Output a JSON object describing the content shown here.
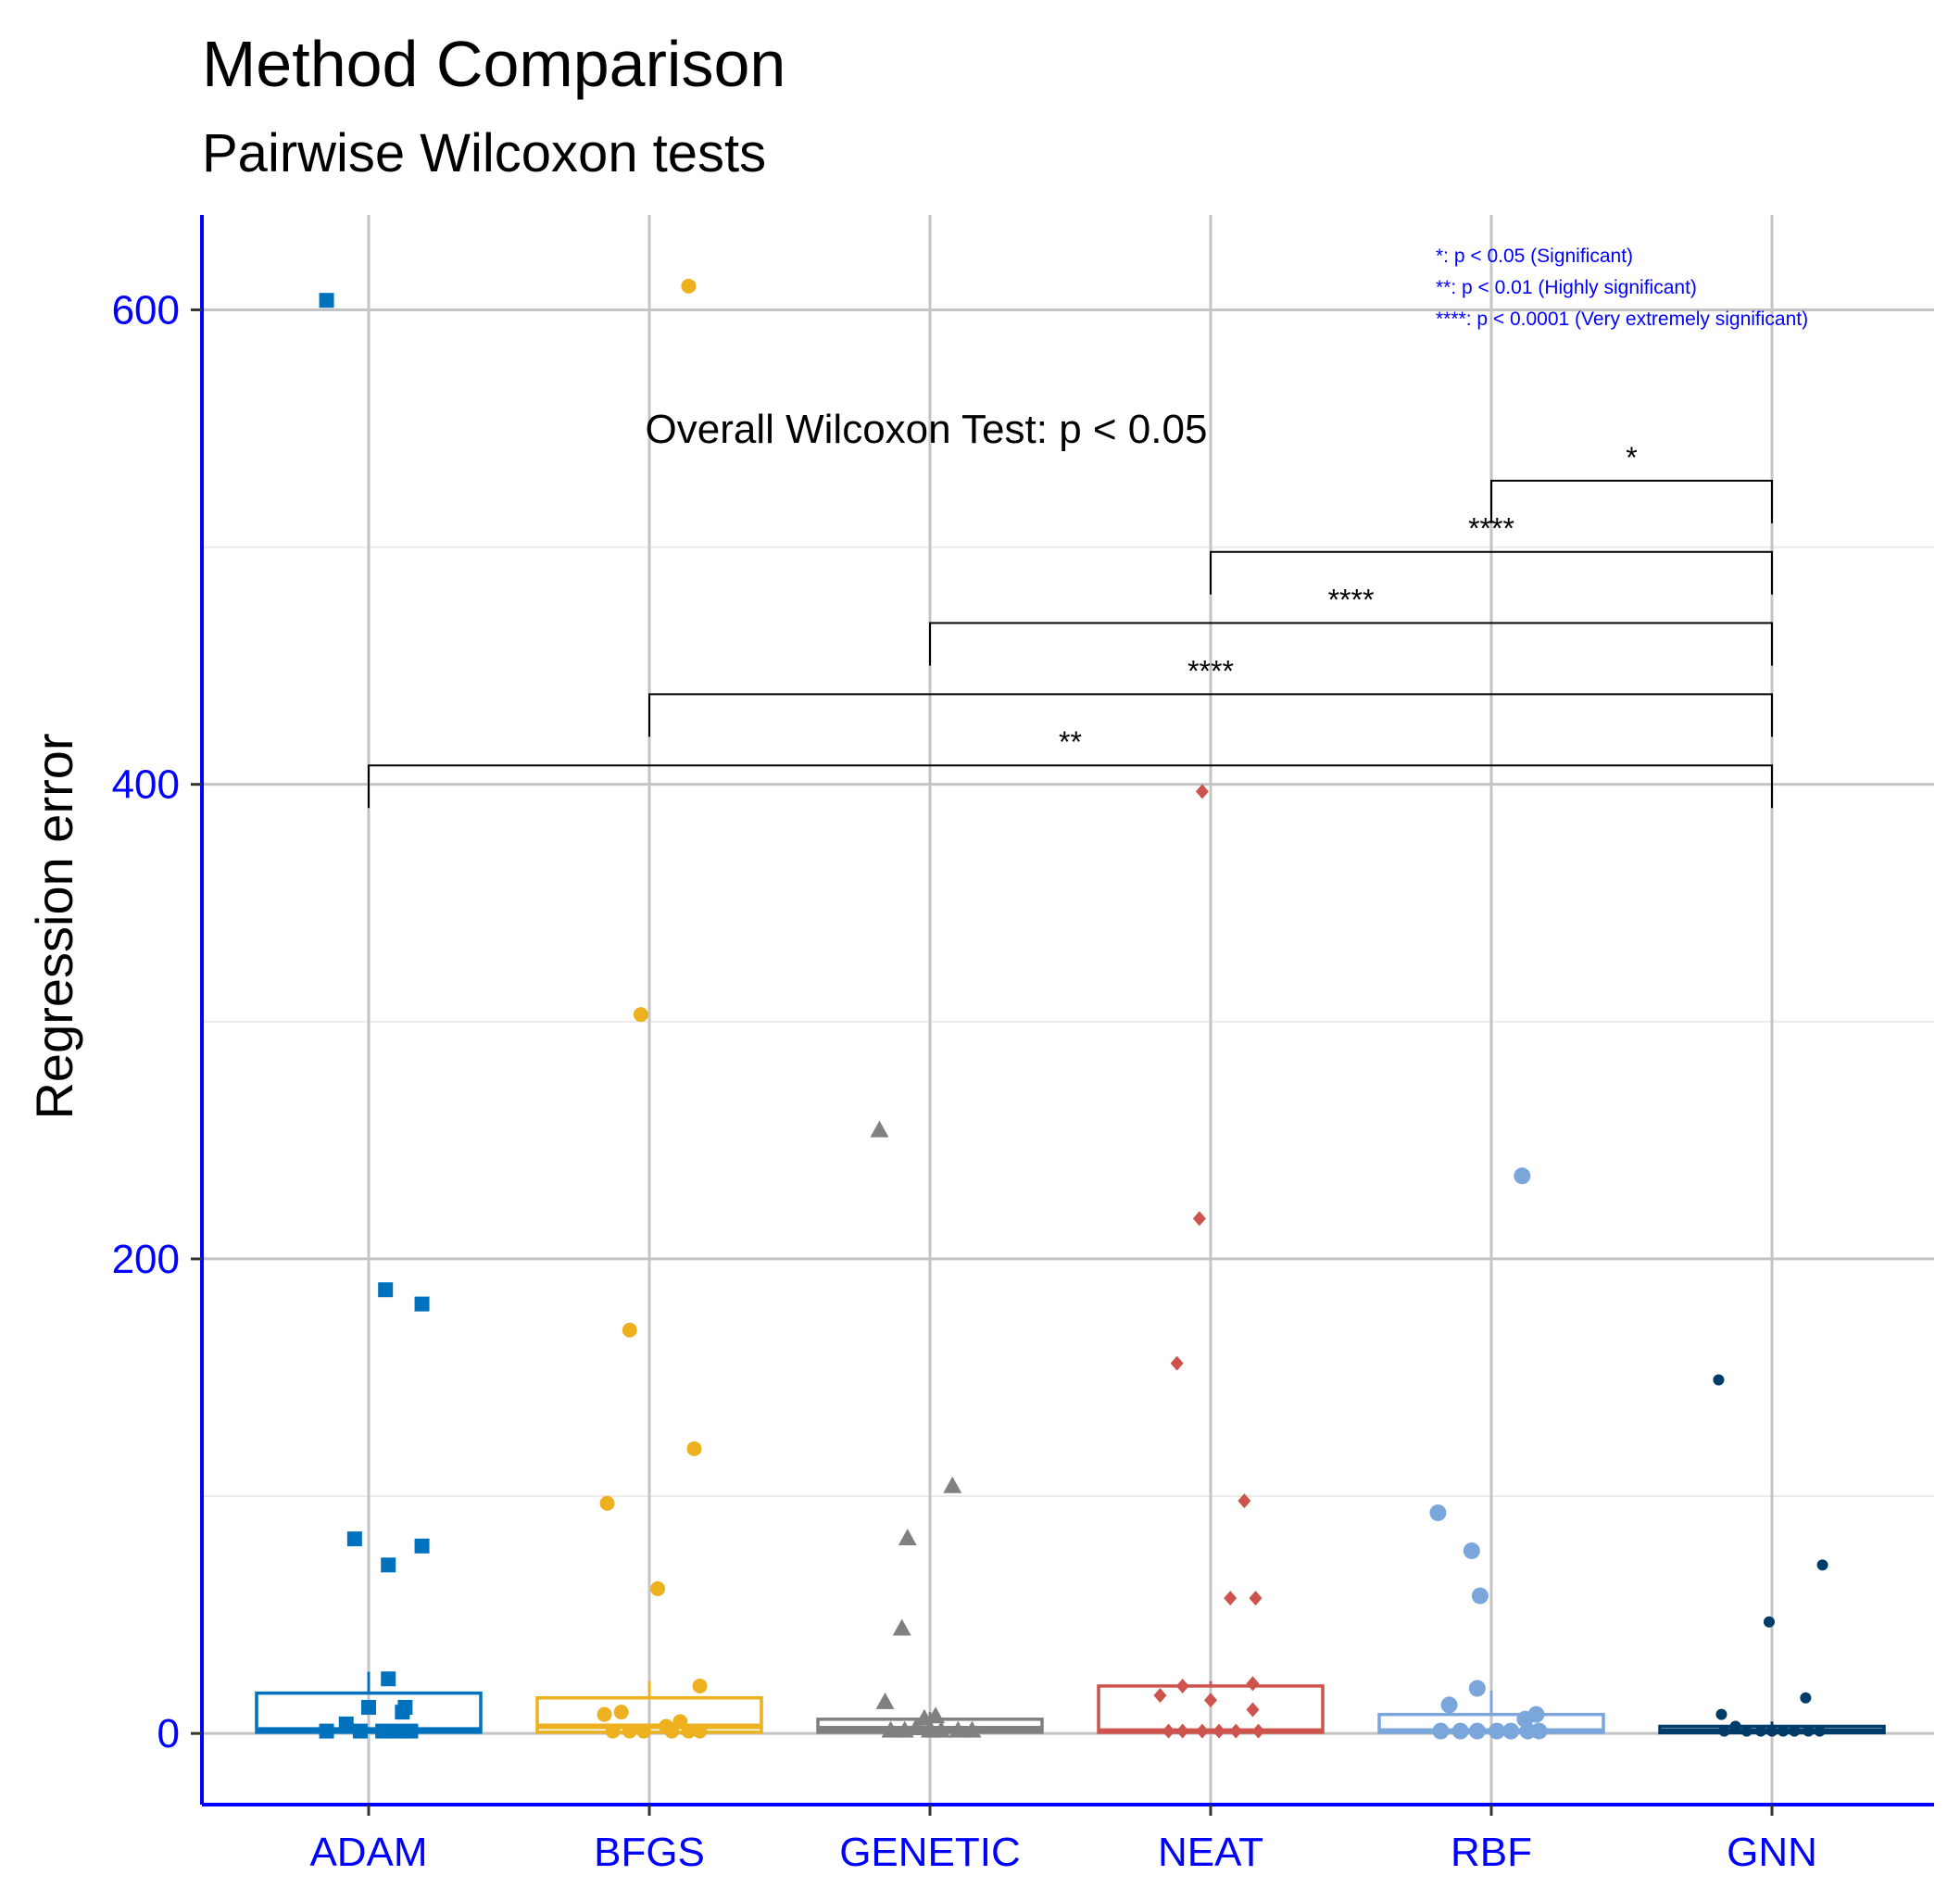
{
  "chart_data": {
    "type": "box",
    "title": "Method Comparison",
    "subtitle": "Pairwise Wilcoxon tests",
    "ylabel": "Regression error",
    "xlabel": "",
    "ylim": [
      -30,
      640
    ],
    "yticks": [
      0,
      200,
      400,
      600
    ],
    "categories": [
      "ADAM",
      "BFGS",
      "GENETIC",
      "NEAT",
      "RBF",
      "GNN"
    ],
    "colors": [
      "#0072BD",
      "#EDB120",
      "#808080",
      "#CD534C",
      "#7AA6DC",
      "#003C67"
    ],
    "markers": [
      "square",
      "circle",
      "triangle",
      "diamond",
      "circle",
      "circle"
    ],
    "boxes": [
      {
        "name": "ADAM",
        "q1": 0.5,
        "median": 1.5,
        "q3": 17,
        "upper_whisker": 26
      },
      {
        "name": "BFGS",
        "q1": 0.5,
        "median": 3,
        "q3": 15,
        "upper_whisker": 22
      },
      {
        "name": "GENETIC",
        "q1": 0.5,
        "median": 2,
        "q3": 6,
        "upper_whisker": 9
      },
      {
        "name": "NEAT",
        "q1": 0.5,
        "median": 1,
        "q3": 20,
        "upper_whisker": 22
      },
      {
        "name": "RBF",
        "q1": 0.5,
        "median": 1,
        "q3": 8,
        "upper_whisker": 18
      },
      {
        "name": "GNN",
        "q1": 0.3,
        "median": 1,
        "q3": 3,
        "upper_whisker": 5
      }
    ],
    "points": [
      {
        "name": "ADAM",
        "values": [
          {
            "dx": -0.15,
            "y": 604
          },
          {
            "dx": 0.06,
            "y": 187
          },
          {
            "dx": 0.19,
            "y": 181
          },
          {
            "dx": -0.05,
            "y": 82
          },
          {
            "dx": 0.19,
            "y": 79
          },
          {
            "dx": 0.07,
            "y": 71
          },
          {
            "dx": 0.07,
            "y": 23
          },
          {
            "dx": 0.0,
            "y": 11
          },
          {
            "dx": 0.13,
            "y": 11
          },
          {
            "dx": 0.12,
            "y": 9
          },
          {
            "dx": -0.08,
            "y": 4
          },
          {
            "dx": -0.15,
            "y": 1
          },
          {
            "dx": -0.03,
            "y": 1
          },
          {
            "dx": 0.05,
            "y": 1
          },
          {
            "dx": 0.1,
            "y": 1
          },
          {
            "dx": 0.15,
            "y": 1
          }
        ]
      },
      {
        "name": "BFGS",
        "values": [
          {
            "dx": 0.14,
            "y": 610
          },
          {
            "dx": -0.03,
            "y": 303
          },
          {
            "dx": -0.07,
            "y": 170
          },
          {
            "dx": 0.16,
            "y": 120
          },
          {
            "dx": -0.15,
            "y": 97
          },
          {
            "dx": 0.03,
            "y": 61
          },
          {
            "dx": 0.18,
            "y": 20
          },
          {
            "dx": -0.16,
            "y": 8
          },
          {
            "dx": -0.1,
            "y": 9
          },
          {
            "dx": 0.11,
            "y": 5
          },
          {
            "dx": 0.06,
            "y": 3
          },
          {
            "dx": -0.13,
            "y": 1
          },
          {
            "dx": -0.07,
            "y": 1
          },
          {
            "dx": -0.02,
            "y": 1
          },
          {
            "dx": 0.08,
            "y": 1
          },
          {
            "dx": 0.14,
            "y": 1
          },
          {
            "dx": 0.18,
            "y": 1
          }
        ]
      },
      {
        "name": "GENETIC",
        "values": [
          {
            "dx": -0.18,
            "y": 254
          },
          {
            "dx": 0.08,
            "y": 104
          },
          {
            "dx": -0.08,
            "y": 82
          },
          {
            "dx": -0.1,
            "y": 44
          },
          {
            "dx": -0.16,
            "y": 13
          },
          {
            "dx": -0.02,
            "y": 6
          },
          {
            "dx": 0.02,
            "y": 7
          },
          {
            "dx": -0.14,
            "y": 1
          },
          {
            "dx": -0.09,
            "y": 1
          },
          {
            "dx": -0.05,
            "y": 2
          },
          {
            "dx": 0.0,
            "y": 1
          },
          {
            "dx": 0.04,
            "y": 1
          },
          {
            "dx": 0.1,
            "y": 1
          },
          {
            "dx": 0.15,
            "y": 1
          }
        ]
      },
      {
        "name": "NEAT",
        "values": [
          {
            "dx": -0.03,
            "y": 397
          },
          {
            "dx": -0.04,
            "y": 217
          },
          {
            "dx": -0.12,
            "y": 156
          },
          {
            "dx": 0.12,
            "y": 98
          },
          {
            "dx": 0.07,
            "y": 57
          },
          {
            "dx": 0.16,
            "y": 57
          },
          {
            "dx": -0.1,
            "y": 20
          },
          {
            "dx": 0.15,
            "y": 21
          },
          {
            "dx": -0.18,
            "y": 16
          },
          {
            "dx": 0.0,
            "y": 14
          },
          {
            "dx": 0.15,
            "y": 10
          },
          {
            "dx": -0.15,
            "y": 1
          },
          {
            "dx": -0.1,
            "y": 1
          },
          {
            "dx": -0.03,
            "y": 1
          },
          {
            "dx": 0.03,
            "y": 1
          },
          {
            "dx": 0.09,
            "y": 1
          },
          {
            "dx": 0.17,
            "y": 1
          }
        ]
      },
      {
        "name": "RBF",
        "values": [
          {
            "dx": 0.11,
            "y": 235
          },
          {
            "dx": -0.19,
            "y": 93
          },
          {
            "dx": -0.07,
            "y": 77
          },
          {
            "dx": -0.04,
            "y": 58
          },
          {
            "dx": -0.05,
            "y": 19
          },
          {
            "dx": -0.15,
            "y": 12
          },
          {
            "dx": 0.16,
            "y": 8
          },
          {
            "dx": 0.12,
            "y": 6
          },
          {
            "dx": -0.18,
            "y": 1
          },
          {
            "dx": -0.11,
            "y": 1
          },
          {
            "dx": -0.05,
            "y": 1
          },
          {
            "dx": 0.02,
            "y": 1
          },
          {
            "dx": 0.07,
            "y": 1
          },
          {
            "dx": 0.13,
            "y": 1
          },
          {
            "dx": 0.17,
            "y": 1
          }
        ]
      },
      {
        "name": "GNN",
        "values": [
          {
            "dx": -0.19,
            "y": 149
          },
          {
            "dx": 0.18,
            "y": 71
          },
          {
            "dx": -0.01,
            "y": 47
          },
          {
            "dx": 0.12,
            "y": 15
          },
          {
            "dx": -0.18,
            "y": 8
          },
          {
            "dx": -0.13,
            "y": 3
          },
          {
            "dx": -0.17,
            "y": 1
          },
          {
            "dx": -0.09,
            "y": 1
          },
          {
            "dx": -0.04,
            "y": 1
          },
          {
            "dx": 0.0,
            "y": 1
          },
          {
            "dx": 0.04,
            "y": 1
          },
          {
            "dx": 0.08,
            "y": 1
          },
          {
            "dx": 0.13,
            "y": 1
          },
          {
            "dx": 0.17,
            "y": 1
          }
        ]
      }
    ],
    "comparisons": [
      {
        "group1": "RBF",
        "group2": "GNN",
        "label": "*",
        "y": 528
      },
      {
        "group1": "NEAT",
        "group2": "GNN",
        "label": "****",
        "y": 498
      },
      {
        "group1": "GENETIC",
        "group2": "GNN",
        "label": "****",
        "y": 468
      },
      {
        "group1": "BFGS",
        "group2": "GNN",
        "label": "****",
        "y": 438
      },
      {
        "group1": "ADAM",
        "group2": "GNN",
        "label": "**",
        "y": 408
      }
    ],
    "annotation": "Overall Wilcoxon Test: p < 0.05",
    "significance_legend": [
      "*: p < 0.05 (Significant)",
      "**: p < 0.01 (Highly significant)",
      "****: p < 0.0001 (Very extremely significant)"
    ],
    "axis_color": "#0000FF",
    "grid": true
  }
}
